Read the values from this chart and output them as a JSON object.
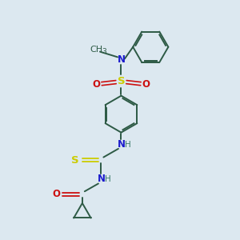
{
  "bg_color": "#dce8f0",
  "bond_color": "#2d5a45",
  "N_color": "#1a1acc",
  "O_color": "#cc1111",
  "S_color": "#cccc00",
  "H_color": "#3a7a6a",
  "font_size": 8.5,
  "bond_width": 1.4,
  "figsize": [
    3.0,
    3.0
  ],
  "dpi": 100,
  "xlim": [
    0,
    10
  ],
  "ylim": [
    0,
    10
  ]
}
